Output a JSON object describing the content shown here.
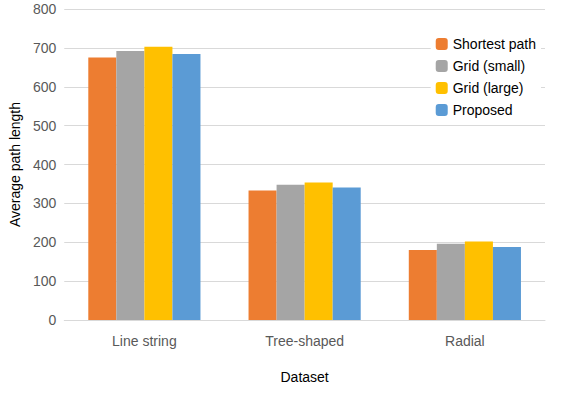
{
  "chart_data": {
    "type": "bar",
    "x_label": "Dataset",
    "y_label": "Average path length",
    "categories": [
      "Line string",
      "Tree-shaped",
      "Radial"
    ],
    "series": [
      {
        "name": "Shortest path",
        "color": "#ED7D31",
        "values": [
          675,
          333,
          180
        ]
      },
      {
        "name": "Grid (small)",
        "color": "#A5A5A5",
        "values": [
          692,
          348,
          196
        ]
      },
      {
        "name": "Grid (large)",
        "color": "#FFC000",
        "values": [
          703,
          354,
          202
        ]
      },
      {
        "name": "Proposed",
        "color": "#5B9BD5",
        "values": [
          684,
          341,
          188
        ]
      }
    ],
    "ylim": [
      0,
      800
    ],
    "yticks": [
      0,
      100,
      200,
      300,
      400,
      500,
      600,
      700,
      800
    ],
    "grid": true,
    "legend": "upper right"
  }
}
